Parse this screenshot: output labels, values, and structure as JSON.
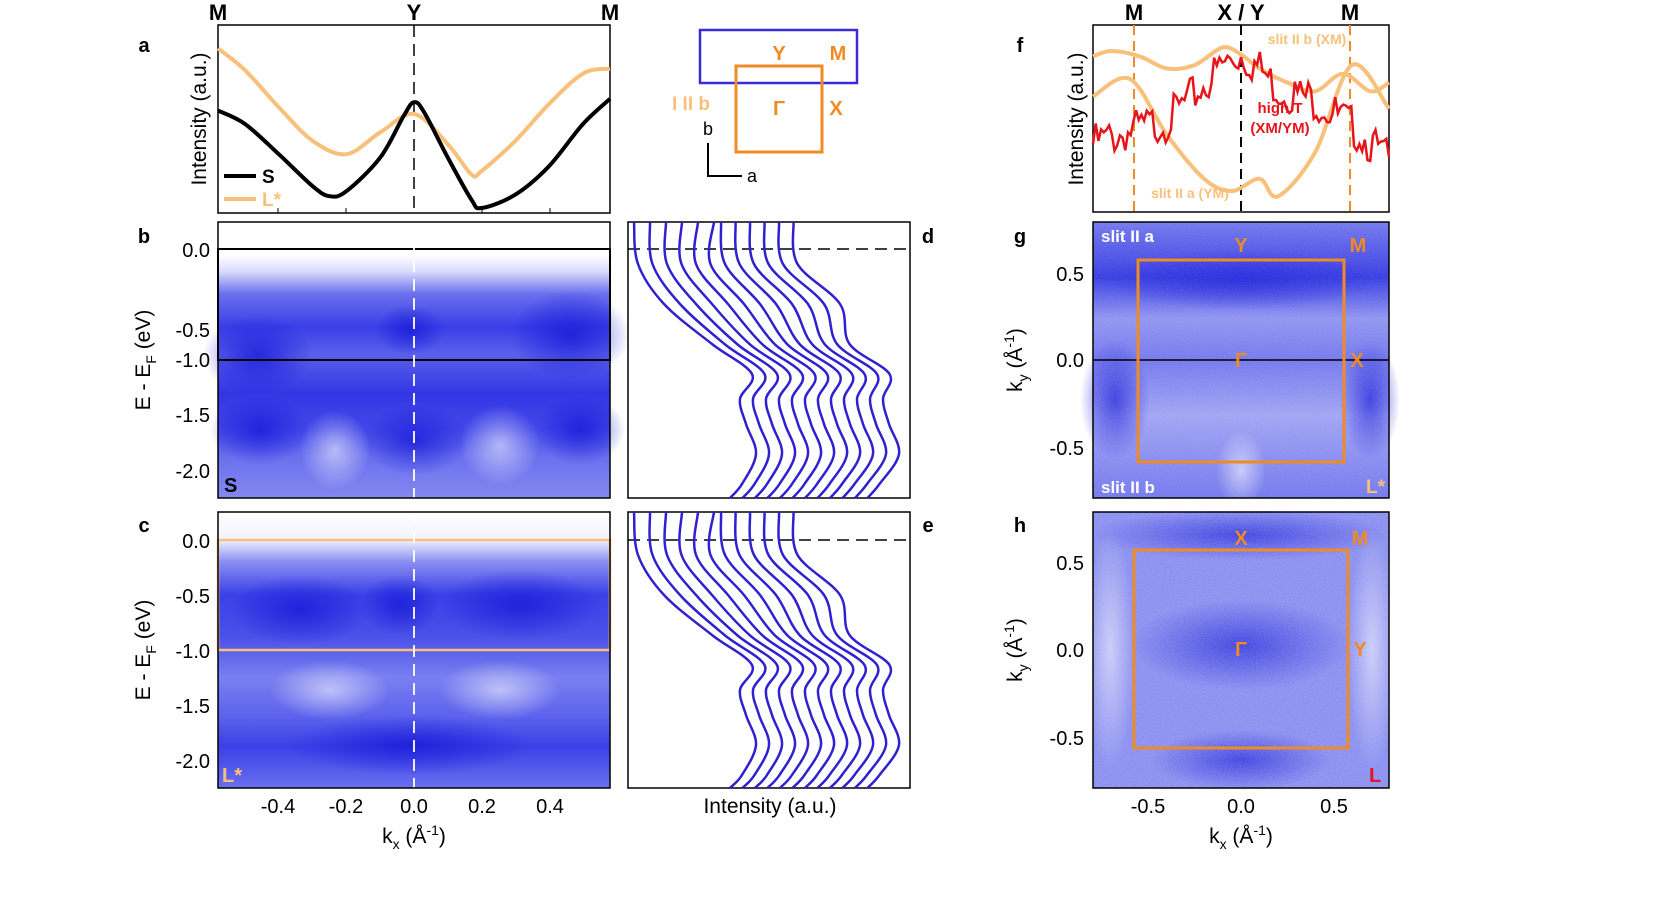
{
  "colors": {
    "S": "#000000",
    "L_star": "#f8c07a",
    "high_T": "#e8141b",
    "bz": "#f08a24",
    "edc": "#3020d0",
    "map": "#2a2ee8",
    "bz_big": "#3a2ad8"
  },
  "panels": {
    "a": "a",
    "b": "b",
    "c": "c",
    "d": "d",
    "e": "e",
    "f": "f",
    "g": "g",
    "h": "h"
  },
  "top_labels": {
    "M_left": "M",
    "Y": "Y",
    "M_right": "M"
  },
  "f_top_labels": {
    "M_left": "M",
    "XY": "X / Y",
    "M_right": "M"
  },
  "a_ylabel": "Intensity (a.u.)",
  "f_ylabel": "Intensity (a.u.)",
  "legend": {
    "S": "S",
    "L": "L*"
  },
  "bz_sketch": {
    "Y": "Y",
    "M": "M",
    "Gamma": "Γ",
    "X": "X",
    "I_label": "I II b",
    "b_axis": "b",
    "a_axis": "a"
  },
  "bc_ylabel": "E - E",
  "bc_ylabel_sub": "F",
  "bc_ylabel_unit": " (eV)",
  "bc_yticks": [
    "0.0",
    "-0.5",
    "-1.0",
    "-1.5",
    "-2.0"
  ],
  "c_xticks": [
    "-0.4",
    "-0.2",
    "0.0",
    "0.2",
    "0.4"
  ],
  "c_xlabel": "k",
  "c_xlabel_sub": "x",
  "c_xlabel_unit": " (Å",
  "c_xlabel_sup": "-1",
  "c_xlabel_end": ")",
  "b_corner": "S",
  "c_corner": "L*",
  "de_xlabel": "Intensity (a.u.)",
  "f_labels": {
    "slit_b": "slit II b (XM)",
    "high_T_1": "high T",
    "high_T_2": "(XM/YM)",
    "slit_a": "slit II a (YM)"
  },
  "g_labels": {
    "slit_a": "slit II a",
    "slit_b": "slit II b",
    "corner": "L*",
    "Y": "Y",
    "M": "M",
    "Gamma": "Γ",
    "X": "X"
  },
  "h_labels": {
    "corner": "L",
    "X": "X",
    "M": "M",
    "Gamma": "Γ",
    "Y": "Y"
  },
  "gh_ylabel": "k",
  "gh_ylabel_sub": "y",
  "gh_ylabel_unit": " (Å",
  "gh_ylabel_sup": "-1",
  "gh_ylabel_end": ")",
  "gh_yticks": [
    "0.5",
    "0.0",
    "-0.5"
  ],
  "h_xticks": [
    "-0.5",
    "0.0",
    "0.5"
  ],
  "h_xlabel": "k",
  "h_xlabel_sub": "x",
  "h_xlabel_unit": " (Å",
  "h_xlabel_sup": "-1",
  "h_xlabel_end": ")",
  "chart_data": [
    {
      "type": "line",
      "panel": "a",
      "title": "",
      "xlabel": "kx (Å-1)",
      "ylabel": "Intensity (a.u.)",
      "xlim": [
        -0.58,
        0.58
      ],
      "ylim": [
        0,
        1
      ],
      "series": [
        {
          "name": "S",
          "x": [
            -0.58,
            -0.5,
            -0.4,
            -0.3,
            -0.25,
            -0.2,
            -0.1,
            -0.03,
            0.0,
            0.03,
            0.1,
            0.17,
            0.2,
            0.3,
            0.4,
            0.5,
            0.58
          ],
          "values": [
            0.58,
            0.5,
            0.32,
            0.13,
            0.07,
            0.1,
            0.3,
            0.55,
            0.63,
            0.57,
            0.3,
            0.05,
            0.0,
            0.08,
            0.25,
            0.5,
            0.65
          ]
        },
        {
          "name": "L*",
          "x": [
            -0.58,
            -0.5,
            -0.4,
            -0.3,
            -0.2,
            -0.1,
            0.0,
            0.1,
            0.17,
            0.2,
            0.3,
            0.4,
            0.5,
            0.58
          ],
          "values": [
            0.95,
            0.82,
            0.6,
            0.4,
            0.32,
            0.45,
            0.56,
            0.38,
            0.2,
            0.22,
            0.4,
            0.62,
            0.8,
            0.83
          ]
        }
      ]
    },
    {
      "type": "heatmap",
      "panel": "b",
      "xlabel": "kx (Å-1)",
      "ylabel": "E - EF (eV)",
      "xlim": [
        -0.58,
        0.58
      ],
      "ylim": [
        -2.25,
        0.25
      ],
      "yticks": [
        0.0,
        -0.5,
        -1.0,
        -1.5,
        -2.0
      ],
      "corner_label": "S"
    },
    {
      "type": "heatmap",
      "panel": "c",
      "xlabel": "kx (Å-1)",
      "ylabel": "E - EF (eV)",
      "xlim": [
        -0.58,
        0.58
      ],
      "ylim": [
        -2.25,
        0.25
      ],
      "xticks": [
        -0.4,
        -0.2,
        0.0,
        0.2,
        0.4
      ],
      "yticks": [
        0.0,
        -0.5,
        -1.0,
        -1.5,
        -2.0
      ],
      "corner_label": "L*"
    },
    {
      "type": "line",
      "panel": "d",
      "xlabel": "Intensity (a.u.)",
      "ylim": [
        -2.25,
        0.25
      ],
      "n_curves": 12
    },
    {
      "type": "line",
      "panel": "e",
      "xlabel": "Intensity (a.u.)",
      "ylim": [
        -2.25,
        0.25
      ],
      "n_curves": 12
    },
    {
      "type": "line",
      "panel": "f",
      "ylabel": "Intensity (a.u.)",
      "xlim": [
        -0.8,
        0.8
      ],
      "ylim": [
        0,
        1
      ],
      "series": [
        {
          "name": "slit II b (XM)",
          "x": [
            -0.8,
            -0.7,
            -0.55,
            -0.4,
            -0.25,
            -0.1,
            0.0,
            0.1,
            0.25,
            0.4,
            0.55,
            0.7,
            0.8
          ],
          "values": [
            0.85,
            0.88,
            0.85,
            0.78,
            0.8,
            0.9,
            0.86,
            0.78,
            0.7,
            0.65,
            0.75,
            0.65,
            0.7
          ]
        },
        {
          "name": "high T (XM/YM)",
          "x": [
            -0.8,
            -0.6,
            -0.4,
            -0.2,
            -0.1,
            0.0,
            0.1,
            0.2,
            0.4,
            0.6,
            0.8
          ],
          "values": [
            0.35,
            0.42,
            0.48,
            0.68,
            0.8,
            0.86,
            0.78,
            0.66,
            0.6,
            0.45,
            0.25
          ]
        },
        {
          "name": "slit II a (YM)",
          "x": [
            -0.8,
            -0.6,
            -0.4,
            -0.2,
            -0.05,
            0.1,
            0.2,
            0.4,
            0.6,
            0.8
          ],
          "values": [
            0.62,
            0.72,
            0.4,
            0.15,
            0.08,
            0.15,
            0.05,
            0.3,
            0.8,
            0.55
          ]
        }
      ]
    },
    {
      "type": "heatmap",
      "panel": "g",
      "xlim": [
        -0.8,
        0.8
      ],
      "ylim": [
        -0.8,
        0.8
      ],
      "yticks": [
        0.5,
        0.0,
        -0.5
      ],
      "labels": [
        "slit II a",
        "slit II b",
        "L*"
      ]
    },
    {
      "type": "heatmap",
      "panel": "h",
      "xlabel": "kx (Å-1)",
      "ylabel": "ky (Å-1)",
      "xlim": [
        -0.8,
        0.8
      ],
      "ylim": [
        -0.8,
        0.8
      ],
      "xticks": [
        -0.5,
        0.0,
        0.5
      ],
      "yticks": [
        0.5,
        0.0,
        -0.5
      ],
      "labels": [
        "L"
      ]
    }
  ]
}
